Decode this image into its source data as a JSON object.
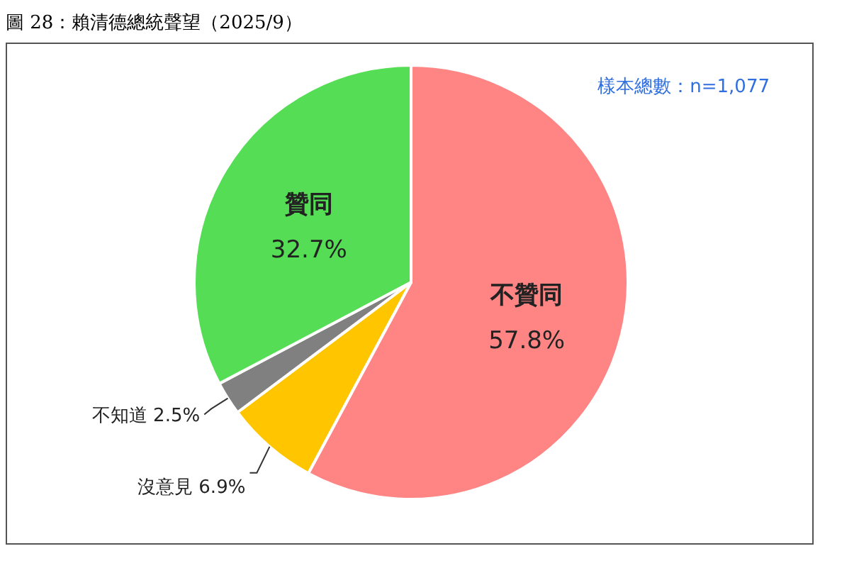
{
  "chart_data": {
    "type": "pie",
    "title": "圖 28：賴清德總統聲望（2025/9）",
    "categories": [
      "不贊同",
      "沒意見",
      "不知道",
      "贊同"
    ],
    "values": [
      57.8,
      6.9,
      2.5,
      32.7
    ],
    "value_labels": [
      "57.8%",
      "6.9%",
      "2.5%",
      "32.7%"
    ],
    "colors": [
      "#ff8585",
      "#ffc600",
      "#808080",
      "#55dd55"
    ],
    "annotations": [
      "樣本總數：n=1,077"
    ],
    "legend": false
  }
}
